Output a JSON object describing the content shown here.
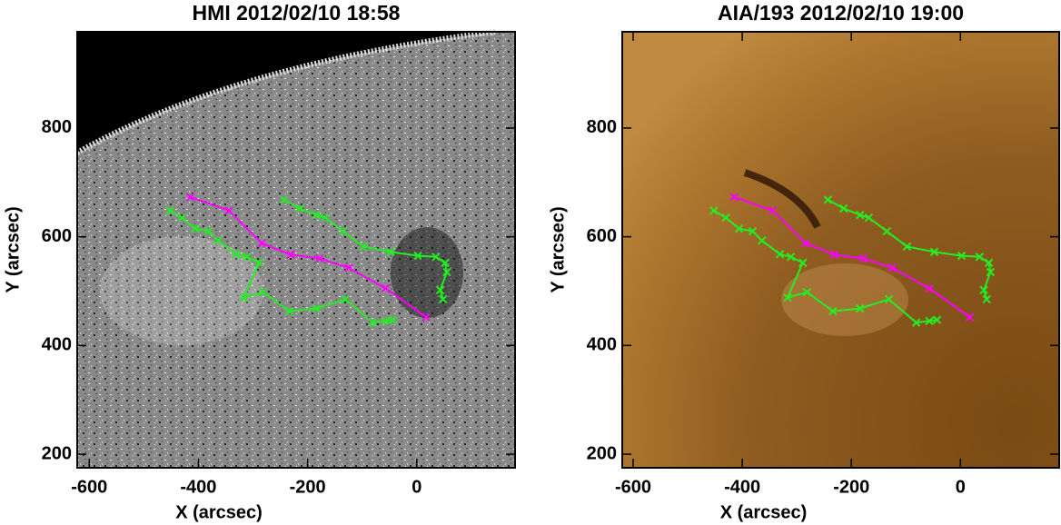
{
  "chart_data": [
    {
      "type": "line",
      "title": "HMI 2012/02/10 18:58",
      "xlabel": "X (arcsec)",
      "ylabel": "Y (arcsec)",
      "xlim": [
        -622,
        180
      ],
      "ylim": [
        175,
        977
      ],
      "xticks": [
        -600,
        -400,
        -200,
        0
      ],
      "yticks": [
        200,
        400,
        600,
        800
      ],
      "series": [
        {
          "color": "#ff00ff",
          "x": [
            -415,
            -344,
            -284,
            -231,
            -178,
            -125,
            -57,
            17
          ],
          "values": [
            673,
            648,
            588,
            567,
            560,
            543,
            505,
            452
          ]
        },
        {
          "color": "#22ee22",
          "x": [
            -243,
            -214,
            -184,
            -168,
            -135,
            -98,
            -48,
            2,
            35,
            52,
            55,
            43,
            48
          ],
          "values": [
            668,
            652,
            640,
            635,
            610,
            582,
            572,
            565,
            563,
            552,
            535,
            502,
            485
          ]
        },
        {
          "color": "#22ee22",
          "x": [
            -452,
            -430,
            -406,
            -381,
            -364,
            -331,
            -311,
            -289,
            -317,
            -281,
            -234,
            -184,
            -131,
            -81,
            -57,
            -43
          ],
          "values": [
            648,
            635,
            615,
            610,
            593,
            568,
            563,
            552,
            488,
            498,
            463,
            468,
            485,
            442,
            445,
            447
          ]
        }
      ]
    },
    {
      "type": "line",
      "title": "AIA/193 2012/02/10 19:00",
      "xlabel": "X (arcsec)",
      "ylabel": "Y (arcsec)",
      "xlim": [
        -620,
        181
      ],
      "ylim": [
        175,
        977
      ],
      "xticks": [
        -600,
        -400,
        -200,
        0
      ],
      "yticks": [
        200,
        400,
        600,
        800
      ],
      "series": [
        {
          "color": "#ff00ff",
          "x": [
            -415,
            -344,
            -284,
            -231,
            -178,
            -125,
            -57,
            17
          ],
          "values": [
            673,
            648,
            588,
            567,
            560,
            543,
            505,
            452
          ]
        },
        {
          "color": "#22ee22",
          "x": [
            -243,
            -214,
            -184,
            -168,
            -135,
            -98,
            -48,
            2,
            35,
            52,
            55,
            43,
            48
          ],
          "values": [
            668,
            652,
            640,
            635,
            610,
            582,
            572,
            565,
            563,
            552,
            535,
            502,
            485
          ]
        },
        {
          "color": "#22ee22",
          "x": [
            -452,
            -430,
            -406,
            -381,
            -364,
            -331,
            -311,
            -289,
            -317,
            -281,
            -234,
            -184,
            -131,
            -81,
            -57,
            -43
          ],
          "values": [
            648,
            635,
            615,
            610,
            593,
            568,
            563,
            552,
            488,
            498,
            463,
            468,
            485,
            442,
            445,
            447
          ]
        }
      ]
    }
  ]
}
